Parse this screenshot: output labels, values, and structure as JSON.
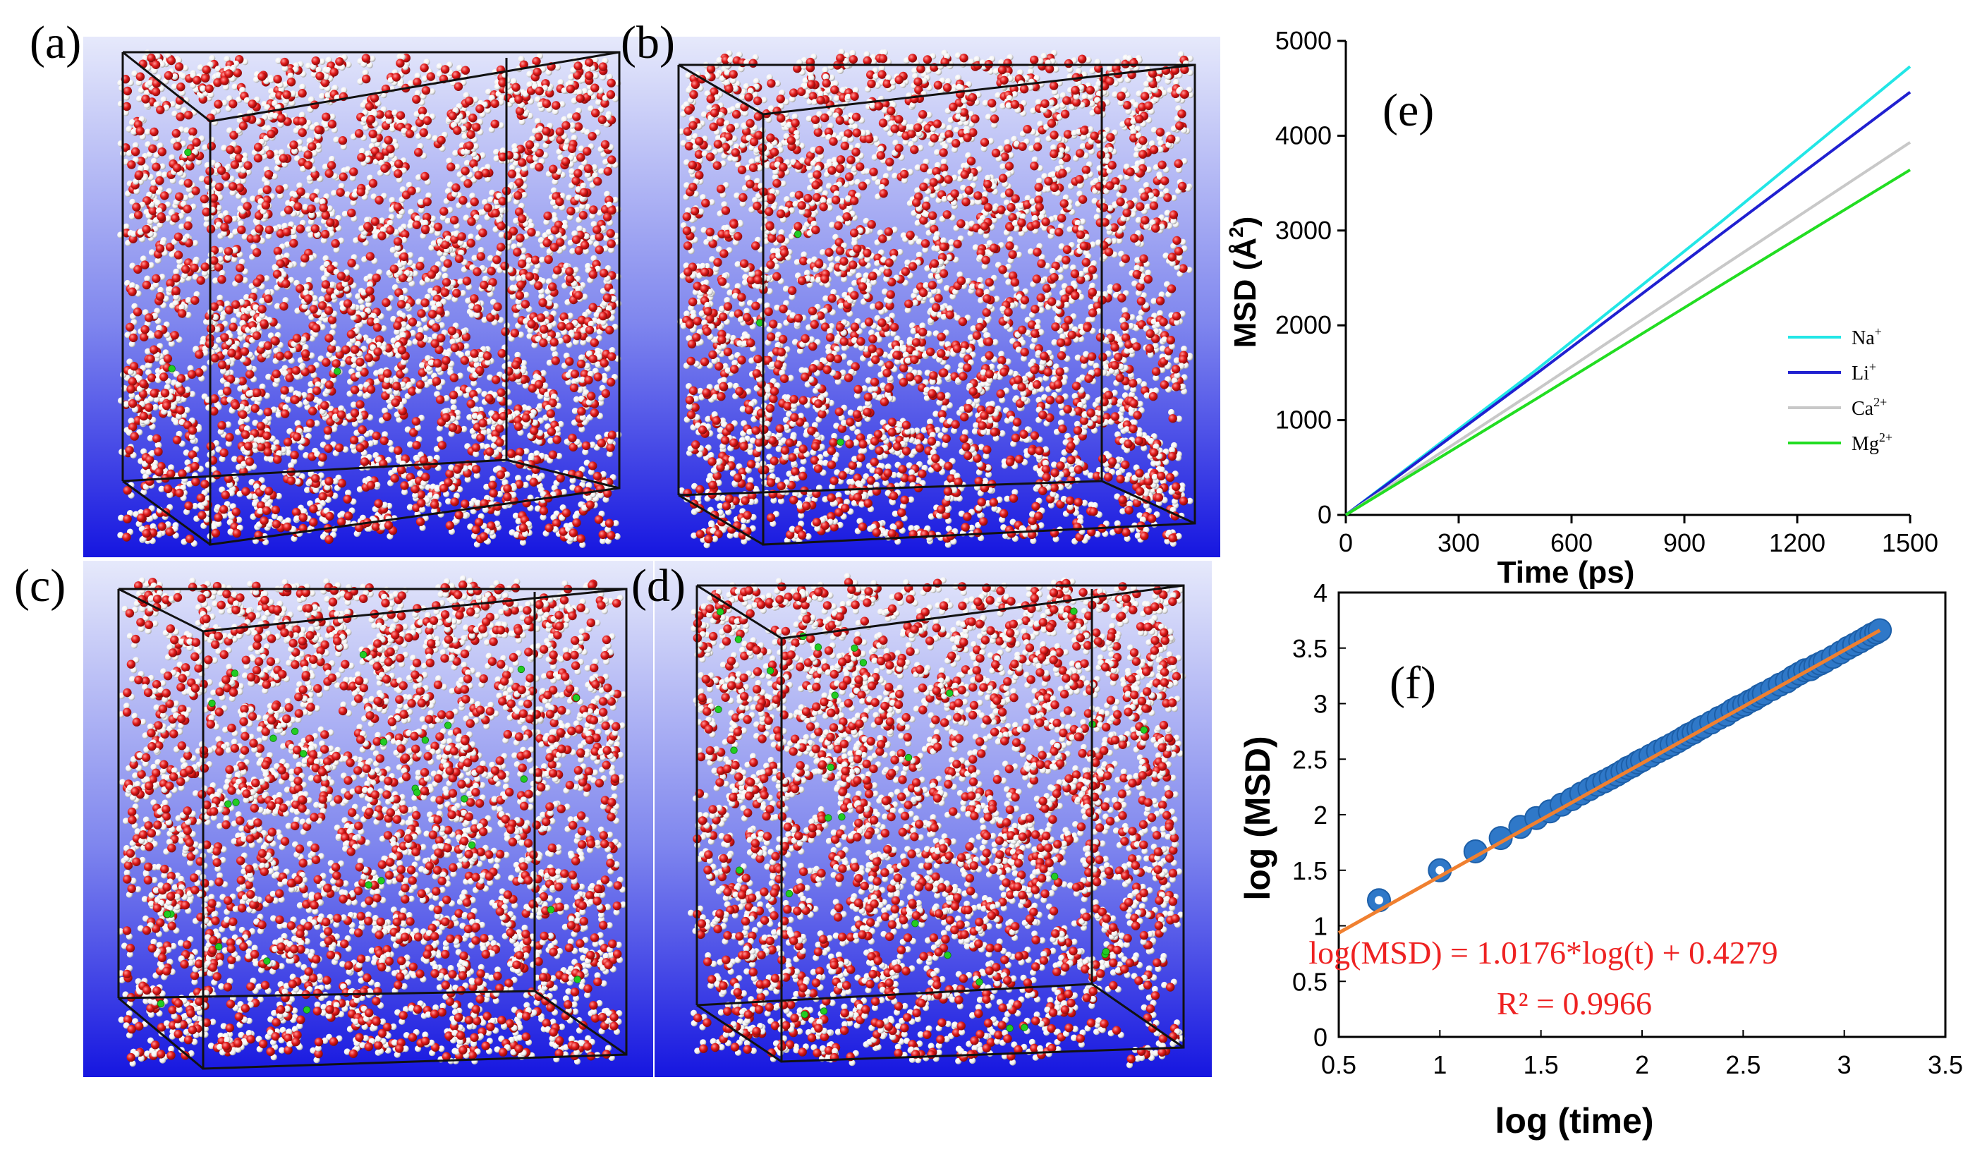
{
  "panels": {
    "a": {
      "label": "(a)"
    },
    "b": {
      "label": "(b)"
    },
    "c": {
      "label": "(c)"
    },
    "d": {
      "label": "(d)"
    }
  },
  "colors": {
    "oxygen": "#e01818",
    "hydrogen": "#f2f2f2",
    "ion": "#22cc22",
    "bg_top": "#e6e9fb",
    "bg_bottom": "#1616e0"
  },
  "chart_data": [
    {
      "id": "e",
      "type": "line",
      "panel_label": "(e)",
      "xlabel": "Time (ps)",
      "ylabel": "MSD (Å²)",
      "ylabel_main": "MSD (Å",
      "ylabel_sup": "2",
      "ylabel_close": ")",
      "xlim": [
        0,
        1500
      ],
      "ylim": [
        0,
        5000
      ],
      "xticks": [
        0,
        300,
        600,
        900,
        1200,
        1500
      ],
      "yticks": [
        0,
        1000,
        2000,
        3000,
        4000,
        5000
      ],
      "series": [
        {
          "name": "Na+",
          "label": "Na",
          "sup": "+",
          "color": "#22e6e6",
          "x": [
            0,
            500,
            1000,
            1500
          ],
          "y": [
            0,
            1510,
            3100,
            4730
          ]
        },
        {
          "name": "Li+",
          "label": "Li",
          "sup": "+",
          "color": "#2020d0",
          "x": [
            0,
            500,
            1000,
            1500
          ],
          "y": [
            0,
            1470,
            2970,
            4460
          ]
        },
        {
          "name": "Ca2+",
          "label": "Ca",
          "sup": "2+",
          "color": "#c8c8c8",
          "x": [
            0,
            500,
            1000,
            1500
          ],
          "y": [
            0,
            1300,
            2620,
            3930
          ]
        },
        {
          "name": "Mg2+",
          "label": "Mg",
          "sup": "2+",
          "color": "#22dd22",
          "x": [
            0,
            500,
            1000,
            1500
          ],
          "y": [
            0,
            1210,
            2430,
            3640
          ]
        }
      ]
    },
    {
      "id": "f",
      "type": "scatter",
      "panel_label": "(f)",
      "xlabel": "log (time)",
      "ylabel": "log (MSD)",
      "xlim": [
        0.5,
        3.5
      ],
      "ylim": [
        0,
        4
      ],
      "xticks": [
        "0.5",
        "1",
        "1.5",
        "2",
        "2.5",
        "3",
        "3.5"
      ],
      "yticks": [
        "0",
        "0.5",
        "1",
        "1.5",
        "2",
        "2.5",
        "3",
        "3.5",
        "4"
      ],
      "point_color": "#2f78c8",
      "fit_color": "#f08030",
      "fit": {
        "slope": 1.0176,
        "intercept": 0.4279,
        "x_range": [
          0.5,
          3.176
        ]
      },
      "equation": "log(MSD) = 1.0176*log(t) + 0.4279",
      "r2": "R² = 0.9966",
      "points": {
        "x": [
          0.699,
          1.0,
          1.176,
          1.301,
          1.398,
          1.477,
          1.544,
          1.602,
          1.653,
          1.699,
          1.74,
          1.778,
          1.813,
          1.845,
          1.875,
          1.903,
          1.929,
          1.954,
          1.978,
          2.0,
          2.041,
          2.079,
          2.114,
          2.146,
          2.176,
          2.204,
          2.23,
          2.255,
          2.279,
          2.301,
          2.342,
          2.38,
          2.415,
          2.447,
          2.477,
          2.505,
          2.531,
          2.556,
          2.58,
          2.602,
          2.643,
          2.681,
          2.716,
          2.748,
          2.778,
          2.806,
          2.833,
          2.857,
          2.881,
          2.903,
          2.944,
          2.982,
          3.017,
          3.049,
          3.079,
          3.107,
          3.134,
          3.158,
          3.176
        ],
        "y": [
          1.23,
          1.5,
          1.67,
          1.79,
          1.89,
          1.97,
          2.03,
          2.09,
          2.14,
          2.19,
          2.23,
          2.27,
          2.3,
          2.33,
          2.36,
          2.39,
          2.42,
          2.44,
          2.47,
          2.49,
          2.53,
          2.57,
          2.6,
          2.63,
          2.66,
          2.69,
          2.72,
          2.74,
          2.77,
          2.79,
          2.83,
          2.87,
          2.9,
          2.94,
          2.97,
          2.99,
          3.02,
          3.04,
          3.07,
          3.09,
          3.13,
          3.17,
          3.2,
          3.24,
          3.27,
          3.3,
          3.31,
          3.34,
          3.36,
          3.38,
          3.42,
          3.46,
          3.5,
          3.53,
          3.56,
          3.59,
          3.62,
          3.64,
          3.66
        ]
      }
    }
  ]
}
